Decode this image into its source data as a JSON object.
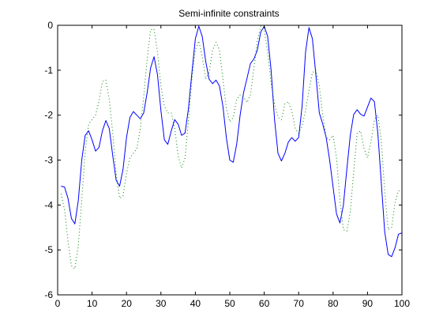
{
  "chart_data": {
    "type": "line",
    "title": "Semi-infinite constraints",
    "xlabel": "",
    "ylabel": "",
    "xlim": [
      0,
      100
    ],
    "ylim": [
      -6,
      0
    ],
    "xticks": [
      0,
      10,
      20,
      30,
      40,
      50,
      60,
      70,
      80,
      90,
      100
    ],
    "yticks": [
      0,
      -1,
      -2,
      -3,
      -4,
      -5,
      -6
    ],
    "grid": false,
    "series": [
      {
        "style": "solid",
        "color": "#0000ff",
        "points": [
          [
            1,
            -3.58
          ],
          [
            2,
            -3.6
          ],
          [
            3,
            -3.85
          ],
          [
            4,
            -4.3
          ],
          [
            5,
            -4.42
          ],
          [
            6,
            -3.9
          ],
          [
            7,
            -3.0
          ],
          [
            8,
            -2.45
          ],
          [
            9,
            -2.35
          ],
          [
            10,
            -2.55
          ],
          [
            11,
            -2.8
          ],
          [
            12,
            -2.72
          ],
          [
            13,
            -2.35
          ],
          [
            14,
            -2.12
          ],
          [
            15,
            -2.3
          ],
          [
            16,
            -2.9
          ],
          [
            17,
            -3.45
          ],
          [
            18,
            -3.58
          ],
          [
            19,
            -3.2
          ],
          [
            20,
            -2.5
          ],
          [
            21,
            -2.05
          ],
          [
            22,
            -1.92
          ],
          [
            23,
            -2.0
          ],
          [
            24,
            -2.08
          ],
          [
            25,
            -1.95
          ],
          [
            26,
            -1.5
          ],
          [
            27,
            -0.95
          ],
          [
            28,
            -0.7
          ],
          [
            29,
            -1.1
          ],
          [
            30,
            -1.9
          ],
          [
            31,
            -2.55
          ],
          [
            32,
            -2.65
          ],
          [
            33,
            -2.35
          ],
          [
            34,
            -2.1
          ],
          [
            35,
            -2.2
          ],
          [
            36,
            -2.45
          ],
          [
            37,
            -2.4
          ],
          [
            38,
            -1.85
          ],
          [
            39,
            -1.05
          ],
          [
            40,
            -0.3
          ],
          [
            41,
            -0.02
          ],
          [
            42,
            -0.25
          ],
          [
            43,
            -0.8
          ],
          [
            44,
            -1.2
          ],
          [
            45,
            -1.3
          ],
          [
            46,
            -1.22
          ],
          [
            47,
            -1.35
          ],
          [
            48,
            -1.8
          ],
          [
            49,
            -2.5
          ],
          [
            50,
            -3.0
          ],
          [
            51,
            -3.05
          ],
          [
            52,
            -2.65
          ],
          [
            53,
            -2.0
          ],
          [
            54,
            -1.5
          ],
          [
            55,
            -1.18
          ],
          [
            56,
            -0.85
          ],
          [
            57,
            -0.75
          ],
          [
            58,
            -0.55
          ],
          [
            59,
            -0.15
          ],
          [
            60,
            -0.02
          ],
          [
            61,
            -0.25
          ],
          [
            62,
            -1.0
          ],
          [
            63,
            -2.1
          ],
          [
            64,
            -2.85
          ],
          [
            65,
            -3.02
          ],
          [
            66,
            -2.85
          ],
          [
            67,
            -2.6
          ],
          [
            68,
            -2.5
          ],
          [
            69,
            -2.58
          ],
          [
            70,
            -2.5
          ],
          [
            71,
            -1.8
          ],
          [
            72,
            -0.6
          ],
          [
            73,
            -0.05
          ],
          [
            74,
            -0.3
          ],
          [
            75,
            -1.1
          ],
          [
            76,
            -1.95
          ],
          [
            77,
            -2.2
          ],
          [
            78,
            -2.5
          ],
          [
            79,
            -3.0
          ],
          [
            80,
            -3.6
          ],
          [
            81,
            -4.2
          ],
          [
            82,
            -4.4
          ],
          [
            83,
            -4.0
          ],
          [
            84,
            -3.2
          ],
          [
            85,
            -2.45
          ],
          [
            86,
            -1.98
          ],
          [
            87,
            -1.88
          ],
          [
            88,
            -1.98
          ],
          [
            89,
            -2.02
          ],
          [
            90,
            -1.82
          ],
          [
            91,
            -1.62
          ],
          [
            92,
            -1.7
          ],
          [
            93,
            -2.4
          ],
          [
            94,
            -3.5
          ],
          [
            95,
            -4.6
          ],
          [
            96,
            -5.1
          ],
          [
            97,
            -5.15
          ],
          [
            98,
            -4.95
          ],
          [
            99,
            -4.65
          ],
          [
            100,
            -4.62
          ]
        ]
      },
      {
        "style": "dotted",
        "color": "#008000",
        "points": [
          [
            1,
            -3.75
          ],
          [
            2,
            -4.1
          ],
          [
            3,
            -4.8
          ],
          [
            4,
            -5.35
          ],
          [
            5,
            -5.42
          ],
          [
            6,
            -4.9
          ],
          [
            7,
            -3.9
          ],
          [
            8,
            -2.8
          ],
          [
            9,
            -2.2
          ],
          [
            10,
            -2.1
          ],
          [
            11,
            -2.0
          ],
          [
            12,
            -1.7
          ],
          [
            13,
            -1.25
          ],
          [
            14,
            -1.22
          ],
          [
            15,
            -1.65
          ],
          [
            16,
            -2.4
          ],
          [
            17,
            -3.3
          ],
          [
            18,
            -3.85
          ],
          [
            19,
            -3.8
          ],
          [
            20,
            -3.3
          ],
          [
            21,
            -2.95
          ],
          [
            22,
            -2.85
          ],
          [
            23,
            -2.75
          ],
          [
            24,
            -2.3
          ],
          [
            25,
            -1.6
          ],
          [
            26,
            -0.75
          ],
          [
            27,
            -0.1
          ],
          [
            28,
            -0.08
          ],
          [
            29,
            -0.6
          ],
          [
            30,
            -1.35
          ],
          [
            31,
            -1.8
          ],
          [
            32,
            -1.95
          ],
          [
            33,
            -1.95
          ],
          [
            34,
            -2.3
          ],
          [
            35,
            -2.9
          ],
          [
            36,
            -3.18
          ],
          [
            37,
            -2.95
          ],
          [
            38,
            -2.1
          ],
          [
            39,
            -1.2
          ],
          [
            40,
            -0.55
          ],
          [
            41,
            -0.35
          ],
          [
            42,
            -0.7
          ],
          [
            43,
            -1.2
          ],
          [
            44,
            -1.05
          ],
          [
            45,
            -0.55
          ],
          [
            46,
            -0.38
          ],
          [
            47,
            -0.55
          ],
          [
            48,
            -1.2
          ],
          [
            49,
            -1.85
          ],
          [
            50,
            -2.15
          ],
          [
            51,
            -2.05
          ],
          [
            52,
            -1.65
          ],
          [
            53,
            -1.55
          ],
          [
            54,
            -1.6
          ],
          [
            55,
            -1.72
          ],
          [
            56,
            -1.55
          ],
          [
            57,
            -0.95
          ],
          [
            58,
            -0.35
          ],
          [
            59,
            -0.02
          ],
          [
            60,
            -0.1
          ],
          [
            61,
            -0.6
          ],
          [
            62,
            -1.3
          ],
          [
            63,
            -1.75
          ],
          [
            64,
            -2.05
          ],
          [
            65,
            -2.1
          ],
          [
            66,
            -1.75
          ],
          [
            67,
            -1.7
          ],
          [
            68,
            -1.9
          ],
          [
            69,
            -2.3
          ],
          [
            70,
            -2.4
          ],
          [
            71,
            -2.25
          ],
          [
            72,
            -1.9
          ],
          [
            73,
            -1.45
          ],
          [
            74,
            -1.05
          ],
          [
            75,
            -1.0
          ],
          [
            76,
            -1.35
          ],
          [
            77,
            -2.0
          ],
          [
            78,
            -2.5
          ],
          [
            79,
            -2.55
          ],
          [
            80,
            -2.45
          ],
          [
            81,
            -2.95
          ],
          [
            82,
            -3.9
          ],
          [
            83,
            -4.55
          ],
          [
            84,
            -4.58
          ],
          [
            85,
            -4.15
          ],
          [
            86,
            -3.25
          ],
          [
            87,
            -2.4
          ],
          [
            88,
            -2.35
          ],
          [
            89,
            -2.75
          ],
          [
            90,
            -2.95
          ],
          [
            91,
            -2.6
          ],
          [
            92,
            -2.1
          ],
          [
            93,
            -2.0
          ],
          [
            94,
            -2.55
          ],
          [
            95,
            -3.7
          ],
          [
            96,
            -4.55
          ],
          [
            97,
            -4.5
          ],
          [
            98,
            -3.95
          ],
          [
            99,
            -3.68
          ],
          [
            100,
            -3.7
          ]
        ]
      }
    ]
  }
}
